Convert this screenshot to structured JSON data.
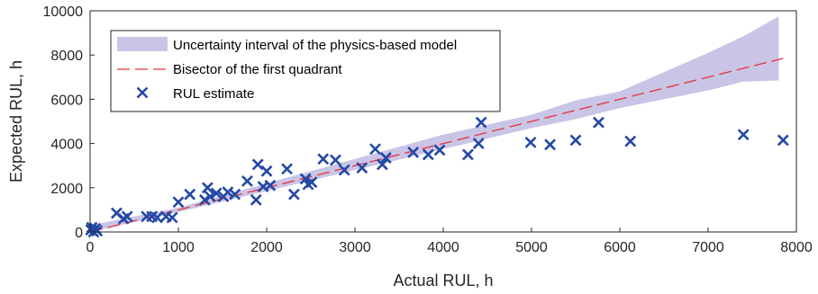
{
  "chart_data": {
    "type": "scatter",
    "title": "",
    "xlabel": "Actual RUL, h",
    "ylabel": "Expected RUL, h",
    "xlim": [
      0,
      8000
    ],
    "ylim": [
      0,
      10000
    ],
    "xticks": [
      0,
      1000,
      2000,
      3000,
      4000,
      5000,
      6000,
      7000,
      8000
    ],
    "yticks": [
      0,
      2000,
      4000,
      6000,
      8000,
      10000
    ],
    "grid": false,
    "legend_position": "top-left",
    "series": [
      {
        "name": "Uncertainty interval of the physics-based model",
        "kind": "band",
        "color": "#c9c5e6",
        "x": [
          0,
          1000,
          2000,
          3000,
          4000,
          5000,
          5500,
          6000,
          7000,
          7400,
          7800
        ],
        "lower": [
          0,
          900,
          1850,
          2800,
          3750,
          4700,
          5100,
          5600,
          6400,
          6800,
          6850
        ],
        "upper": [
          300,
          1100,
          2200,
          3300,
          4400,
          5300,
          5950,
          6350,
          8100,
          8850,
          9750
        ]
      },
      {
        "name": "Bisector of the first quadrant",
        "kind": "line",
        "color": "#e8303a",
        "dash": true,
        "x": [
          0,
          7850
        ],
        "y": [
          0,
          7850
        ]
      },
      {
        "name": "RUL estimate",
        "kind": "scatter",
        "marker": "x",
        "color": "#2448a6",
        "x": [
          10,
          20,
          40,
          60,
          80,
          300,
          380,
          420,
          640,
          700,
          760,
          860,
          930,
          1000,
          1130,
          1300,
          1330,
          1360,
          1430,
          1510,
          1560,
          1640,
          1780,
          1880,
          1900,
          1960,
          2000,
          2040,
          2230,
          2310,
          2440,
          2470,
          2510,
          2640,
          2780,
          2880,
          3080,
          3230,
          3310,
          3350,
          3660,
          3830,
          3960,
          4280,
          4400,
          4430,
          4990,
          5210,
          5500,
          5760,
          6120,
          7400,
          7850
        ],
        "y": [
          100,
          200,
          0,
          150,
          50,
          850,
          600,
          700,
          700,
          700,
          650,
          700,
          650,
          1350,
          1700,
          1450,
          2000,
          1600,
          1750,
          1600,
          1800,
          1700,
          2300,
          1450,
          3050,
          2050,
          2750,
          2100,
          2850,
          1700,
          2400,
          2150,
          2250,
          3300,
          3250,
          2800,
          2900,
          3750,
          3050,
          3350,
          3600,
          3500,
          3700,
          3500,
          4000,
          4950,
          4050,
          3950,
          4150,
          4950,
          4100,
          4400,
          4150
        ]
      }
    ]
  }
}
